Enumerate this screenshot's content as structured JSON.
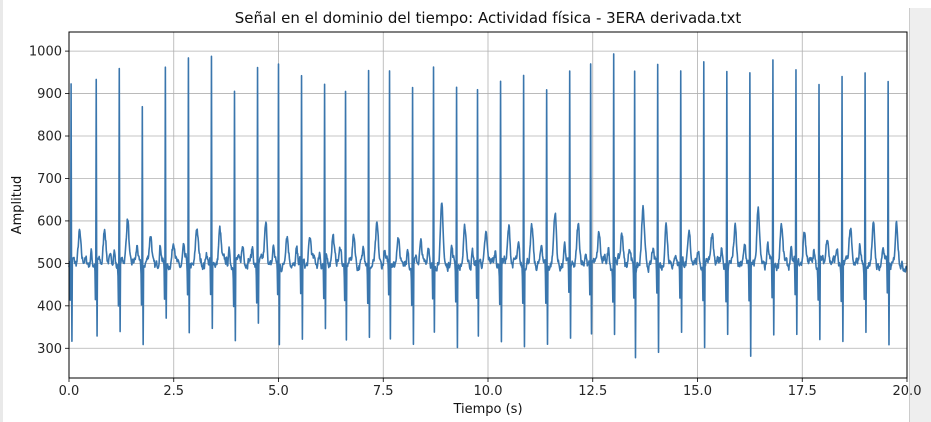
{
  "chart_data": {
    "type": "line",
    "title": "Señal en el dominio del tiempo: Actividad física - 3ERA derivada.txt",
    "xlabel": "Tiempo (s)",
    "ylabel": "Amplitud",
    "xlim": [
      0.0,
      20.0
    ],
    "ylim": [
      230,
      1045
    ],
    "grid": true,
    "line_color": "#3a76ad",
    "grid_color": "#b0b0b0",
    "x_ticks": [
      0.0,
      2.5,
      5.0,
      7.5,
      10.0,
      12.5,
      15.0,
      17.5,
      20.0
    ],
    "x_tick_labels": [
      "0.0",
      "2.5",
      "5.0",
      "7.5",
      "10.0",
      "12.5",
      "15.0",
      "17.5",
      "20.0"
    ],
    "y_ticks": [
      300,
      400,
      500,
      600,
      700,
      800,
      900,
      1000
    ],
    "y_tick_labels": [
      "300",
      "400",
      "500",
      "600",
      "700",
      "800",
      "900",
      "1000"
    ],
    "series": [
      {
        "beats_time": [
          0.05,
          0.65,
          1.2,
          1.75,
          2.3,
          2.85,
          3.4,
          3.95,
          4.5,
          5.0,
          5.55,
          6.1,
          6.6,
          7.15,
          7.65,
          8.2,
          8.7,
          9.25,
          9.75,
          10.3,
          10.85,
          11.4,
          11.95,
          12.45,
          13.0,
          13.5,
          14.05,
          14.6,
          15.15,
          15.7,
          16.25,
          16.8,
          17.35,
          17.9,
          18.45,
          19.0,
          19.55
        ],
        "beats_peak": [
          915,
          925,
          958,
          878,
          975,
          972,
          972,
          910,
          975,
          970,
          935,
          908,
          905,
          955,
          950,
          907,
          960,
          918,
          900,
          935,
          960,
          918,
          945,
          958,
          1010,
          960,
          972,
          952,
          975,
          955,
          958,
          972,
          945,
          930,
          940,
          952,
          935
        ],
        "beats_trough": [
          285,
          295,
          325,
          285,
          365,
          305,
          315,
          290,
          340,
          290,
          300,
          315,
          310,
          305,
          305,
          285,
          320,
          290,
          295,
          295,
          300,
          300,
          300,
          305,
          310,
          270,
          275,
          315,
          280,
          330,
          265,
          305,
          295,
          295,
          285,
          325,
          295
        ],
        "t_wave_peak": [
          580,
          592,
          613,
          565,
          545,
          582,
          585,
          548,
          590,
          562,
          560,
          575,
          562,
          578,
          568,
          555,
          628,
          575,
          575,
          590,
          580,
          612,
          585,
          580,
          575,
          620,
          590,
          575,
          572,
          582,
          625,
          590,
          582,
          575,
          585,
          580,
          590
        ]
      }
    ]
  }
}
